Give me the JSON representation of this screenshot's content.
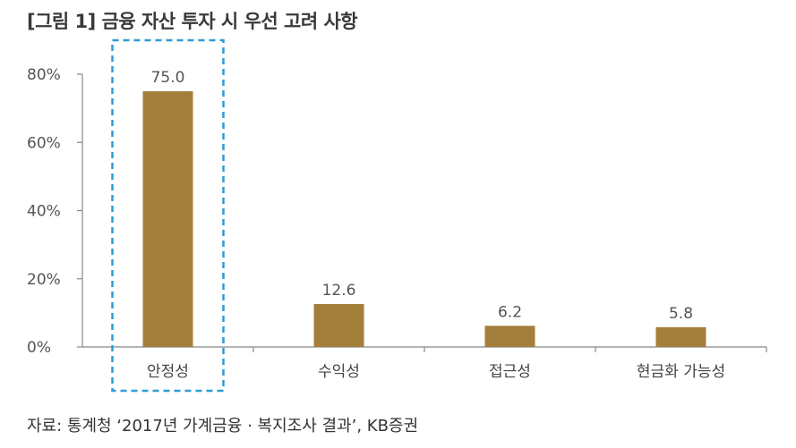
{
  "title": "[그림 1] 금융 자산 투자 시 우선 고려 사항",
  "source": "자료: 통계청 ‘2017년 가계금융 · 복지조사 결과’, KB증권",
  "colors": {
    "bar": "#A47E3B",
    "highlight_box": "#2E9BD6",
    "axis": "#888888"
  },
  "chart_data": {
    "type": "bar",
    "title": "[그림 1] 금융 자산 투자 시 우선 고려 사항",
    "categories": [
      "안정성",
      "수익성",
      "접근성",
      "현금화 가능성"
    ],
    "values": [
      75.0,
      12.6,
      6.2,
      5.8
    ],
    "value_labels": [
      "75.0",
      "12.6",
      "6.2",
      "5.8"
    ],
    "ylim": [
      0,
      80
    ],
    "yticks": [
      0,
      20,
      40,
      60,
      80
    ],
    "ytick_labels": [
      "0%",
      "20%",
      "40%",
      "60%",
      "80%"
    ],
    "xlabel": "",
    "ylabel": "",
    "grid": false,
    "highlighted_category": "안정성"
  }
}
